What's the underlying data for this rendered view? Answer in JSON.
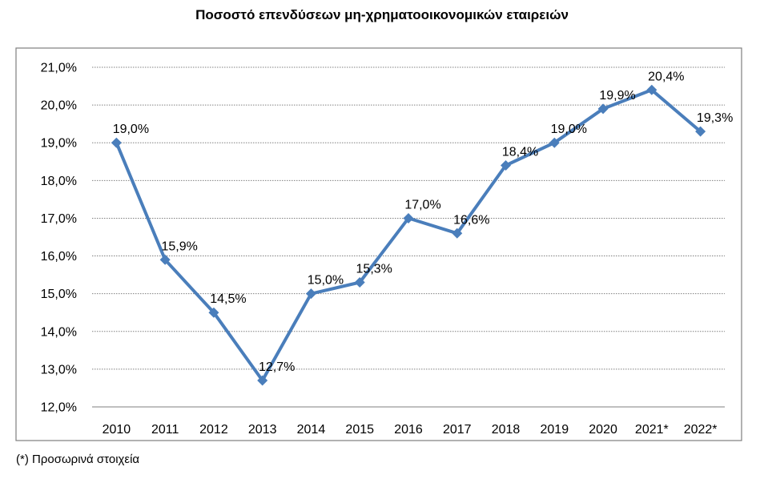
{
  "chart_data": {
    "type": "line",
    "title": "Ποσοστό επενδύσεων μη-χρηματοοικονομικών εταιρειών",
    "categories": [
      "2010",
      "2011",
      "2012",
      "2013",
      "2014",
      "2015",
      "2016",
      "2017",
      "2018",
      "2019",
      "2020",
      "2021*",
      "2022*"
    ],
    "series": [
      {
        "values": [
          19.0,
          15.9,
          14.5,
          12.7,
          15.0,
          15.3,
          17.0,
          16.6,
          18.4,
          19.0,
          19.9,
          20.4,
          19.3
        ],
        "data_labels": [
          "19,0%",
          "15,9%",
          "14,5%",
          "12,7%",
          "15,0%",
          "15,3%",
          "17,0%",
          "16,6%",
          "18,4%",
          "19,0%",
          "19,9%",
          "20,4%",
          "19,3%"
        ],
        "color": "#4a7ebb"
      }
    ],
    "ylim": [
      12.0,
      21.0
    ],
    "yticks": [
      "12,0%",
      "13,0%",
      "14,0%",
      "15,0%",
      "16,0%",
      "17,0%",
      "18,0%",
      "19,0%",
      "20,0%",
      "21,0%"
    ],
    "grid": true,
    "legend": "none",
    "footnote": "(*) Προσωρινά στοιχεία"
  }
}
